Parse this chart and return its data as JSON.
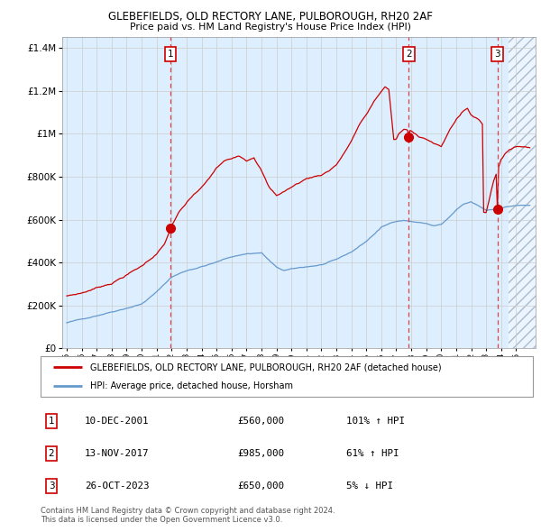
{
  "title": "GLEBEFIELDS, OLD RECTORY LANE, PULBOROUGH, RH20 2AF",
  "subtitle": "Price paid vs. HM Land Registry's House Price Index (HPI)",
  "legend_line1": "GLEBEFIELDS, OLD RECTORY LANE, PULBOROUGH, RH20 2AF (detached house)",
  "legend_line2": "HPI: Average price, detached house, Horsham",
  "transactions": [
    {
      "num": 1,
      "date": "10-DEC-2001",
      "price": 560000,
      "pct": "101%",
      "dir": "↑"
    },
    {
      "num": 2,
      "date": "13-NOV-2017",
      "price": 985000,
      "pct": "61%",
      "dir": "↑"
    },
    {
      "num": 3,
      "date": "26-OCT-2023",
      "price": 650000,
      "pct": "5%",
      "dir": "↓"
    }
  ],
  "footer": "Contains HM Land Registry data © Crown copyright and database right 2024.\nThis data is licensed under the Open Government Licence v3.0.",
  "red_color": "#cc0000",
  "blue_color": "#6699cc",
  "bg_color": "#ddeeff",
  "grid_color": "#cccccc",
  "dashed_color": "#dd4444",
  "ylim": [
    0,
    1450000
  ],
  "yticks": [
    0,
    200000,
    400000,
    600000,
    800000,
    1000000,
    1200000,
    1400000
  ],
  "start_year": 1995,
  "end_year": 2026,
  "trans1_year": 2001,
  "trans1_month": 12,
  "trans2_year": 2017,
  "trans2_month": 11,
  "trans3_year": 2023,
  "trans3_month": 10
}
